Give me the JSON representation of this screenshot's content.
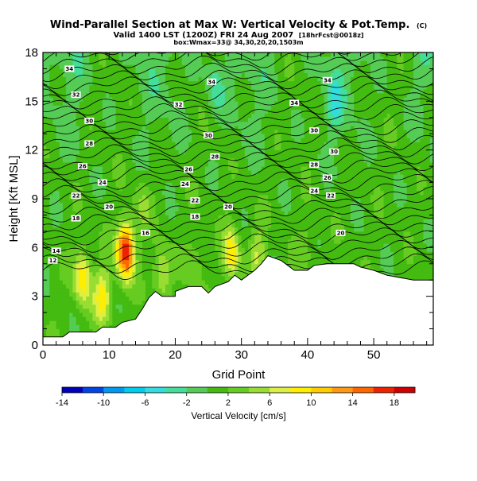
{
  "title": "Wind-Parallel Section at Max W: Vertical Velocity & Pot.Temp.",
  "title_mark": "(C)",
  "subtitle1": "Valid 1400 LST (1200Z) FRI 24 Aug 2007",
  "subtitle1_run": "[18hrFcst@0018z]",
  "subtitle2": "box:Wmax=33@ 34,30,20,20,1503m",
  "chart_data": {
    "type": "heatmap",
    "xlabel": "Grid Point",
    "ylabel": "Height [Kft MSL]",
    "xlim": [
      0,
      59
    ],
    "ylim": [
      0,
      18
    ],
    "x_ticks": [
      "0",
      "10",
      "20",
      "30",
      "40",
      "50"
    ],
    "y_ticks": [
      "0",
      "3",
      "6",
      "9",
      "12",
      "15",
      "18"
    ],
    "colorbar": {
      "label": "Vertical Velocity [cm/s]",
      "levels": [
        -14,
        -12,
        -10,
        -8,
        -6,
        -4,
        -2,
        0,
        2,
        4,
        6,
        8,
        10,
        12,
        14,
        16,
        18,
        20
      ],
      "tick_labels": [
        "-14",
        "-10",
        "-6",
        "-2",
        "2",
        "6",
        "10",
        "14",
        "18"
      ],
      "colors": [
        "#0000b8",
        "#0044e6",
        "#0099f0",
        "#00ccee",
        "#33dddd",
        "#44dd99",
        "#55cc55",
        "#44bb11",
        "#66cc22",
        "#99dd33",
        "#ddee44",
        "#ffee00",
        "#ffcc00",
        "#ff9911",
        "#ff6600",
        "#ee2200",
        "#cc0000"
      ]
    },
    "terrain": [
      [
        0,
        0.5
      ],
      [
        3,
        0.5
      ],
      [
        4,
        0.8
      ],
      [
        8,
        0.8
      ],
      [
        9,
        1.1
      ],
      [
        11,
        1.1
      ],
      [
        12,
        1.4
      ],
      [
        14,
        1.6
      ],
      [
        15,
        2.2
      ],
      [
        16,
        2.9
      ],
      [
        17,
        3.3
      ],
      [
        18,
        3.0
      ],
      [
        20,
        3.0
      ],
      [
        20,
        3.3
      ],
      [
        22,
        3.6
      ],
      [
        24,
        3.6
      ],
      [
        25,
        3.2
      ],
      [
        26,
        3.6
      ],
      [
        28,
        3.9
      ],
      [
        29,
        4.3
      ],
      [
        30,
        4.0
      ],
      [
        31,
        4.3
      ],
      [
        32,
        4.6
      ],
      [
        33,
        5.0
      ],
      [
        34,
        5.5
      ],
      [
        36,
        5.2
      ],
      [
        37,
        4.9
      ],
      [
        38,
        4.6
      ],
      [
        40,
        4.6
      ],
      [
        41,
        4.9
      ],
      [
        43,
        5.0
      ],
      [
        47,
        5.0
      ],
      [
        48,
        4.8
      ],
      [
        49,
        4.7
      ],
      [
        50,
        4.6
      ],
      [
        52,
        4.3
      ],
      [
        56,
        4.0
      ],
      [
        59,
        4.0
      ]
    ],
    "updrafts": [
      {
        "x": 6,
        "z": 4.2,
        "w": 9
      },
      {
        "x": 12.5,
        "z": 5.8,
        "w": 18
      },
      {
        "x": 9,
        "z": 3.0,
        "w": 8
      },
      {
        "x": 18,
        "z": 4.4,
        "w": 6
      },
      {
        "x": 23,
        "z": 4.9,
        "w": 3
      },
      {
        "x": 28.5,
        "z": 5.6,
        "w": 8
      },
      {
        "x": 32.5,
        "z": 5.6,
        "w": 5
      },
      {
        "x": 40,
        "z": 6.2,
        "w": 2
      },
      {
        "x": 15,
        "z": 8.5,
        "w": 3
      },
      {
        "x": 44,
        "z": 15.0,
        "w": -4
      },
      {
        "x": 26,
        "z": 16.0,
        "w": -4
      }
    ],
    "theta_labels": [
      {
        "x": 4,
        "z": 17.0,
        "t": "34"
      },
      {
        "x": 5,
        "z": 15.4,
        "t": "32"
      },
      {
        "x": 7,
        "z": 13.8,
        "t": "30"
      },
      {
        "x": 7,
        "z": 12.4,
        "t": "28"
      },
      {
        "x": 6,
        "z": 11.0,
        "t": "26"
      },
      {
        "x": 9,
        "z": 10.0,
        "t": "24"
      },
      {
        "x": 5,
        "z": 9.2,
        "t": "22"
      },
      {
        "x": 10,
        "z": 8.5,
        "t": "20"
      },
      {
        "x": 5,
        "z": 7.8,
        "t": "18"
      },
      {
        "x": 15.5,
        "z": 6.9,
        "t": "16"
      },
      {
        "x": 2,
        "z": 5.8,
        "t": "14"
      },
      {
        "x": 1.5,
        "z": 5.2,
        "t": "12"
      },
      {
        "x": 25.5,
        "z": 16.2,
        "t": "34"
      },
      {
        "x": 20.5,
        "z": 14.8,
        "t": "32"
      },
      {
        "x": 25,
        "z": 12.9,
        "t": "30"
      },
      {
        "x": 26,
        "z": 11.6,
        "t": "28"
      },
      {
        "x": 22,
        "z": 10.8,
        "t": "26"
      },
      {
        "x": 21.5,
        "z": 9.9,
        "t": "24"
      },
      {
        "x": 23,
        "z": 8.9,
        "t": "22"
      },
      {
        "x": 23,
        "z": 7.9,
        "t": "18"
      },
      {
        "x": 28,
        "z": 8.5,
        "t": "20"
      },
      {
        "x": 43,
        "z": 16.3,
        "t": "34"
      },
      {
        "x": 38,
        "z": 14.9,
        "t": "34"
      },
      {
        "x": 41,
        "z": 13.2,
        "t": "30"
      },
      {
        "x": 44,
        "z": 11.9,
        "t": "30"
      },
      {
        "x": 41,
        "z": 11.1,
        "t": "28"
      },
      {
        "x": 43,
        "z": 10.3,
        "t": "26"
      },
      {
        "x": 41,
        "z": 9.5,
        "t": "24"
      },
      {
        "x": 43.5,
        "z": 9.2,
        "t": "22"
      },
      {
        "x": 45,
        "z": 6.9,
        "t": "20"
      }
    ]
  }
}
